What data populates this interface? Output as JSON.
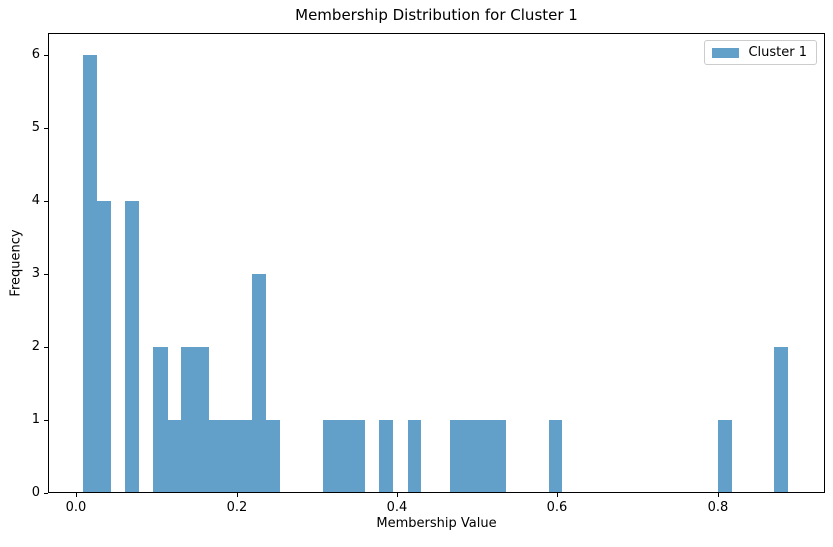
{
  "chart_data": {
    "type": "bar",
    "subtype": "histogram",
    "title": "Membership Distribution for Cluster 1",
    "xlabel": "Membership Value",
    "ylabel": "Frequency",
    "xlim": [
      -0.0353,
      0.9336
    ],
    "ylim": [
      0,
      6.3
    ],
    "xticks": [
      0.0,
      0.2,
      0.4,
      0.6,
      0.8
    ],
    "xtick_labels": [
      "0.0",
      "0.2",
      "0.4",
      "0.6",
      "0.8"
    ],
    "yticks": [
      0,
      1,
      2,
      3,
      4,
      5,
      6
    ],
    "ytick_labels": [
      "0",
      "1",
      "2",
      "3",
      "4",
      "5",
      "6"
    ],
    "grid": false,
    "bar_color": "#1f77b4",
    "bar_opacity": 0.7,
    "bars": [
      {
        "x0": 0.008,
        "x1": 0.026,
        "count": 6
      },
      {
        "x0": 0.026,
        "x1": 0.043,
        "count": 4
      },
      {
        "x0": 0.061,
        "x1": 0.078,
        "count": 4
      },
      {
        "x0": 0.096,
        "x1": 0.114,
        "count": 2
      },
      {
        "x0": 0.114,
        "x1": 0.131,
        "count": 1
      },
      {
        "x0": 0.131,
        "x1": 0.166,
        "count": 2
      },
      {
        "x0": 0.166,
        "x1": 0.219,
        "count": 1
      },
      {
        "x0": 0.219,
        "x1": 0.237,
        "count": 3
      },
      {
        "x0": 0.237,
        "x1": 0.254,
        "count": 1
      },
      {
        "x0": 0.307,
        "x1": 0.36,
        "count": 1
      },
      {
        "x0": 0.378,
        "x1": 0.395,
        "count": 1
      },
      {
        "x0": 0.413,
        "x1": 0.43,
        "count": 1
      },
      {
        "x0": 0.466,
        "x1": 0.536,
        "count": 1
      },
      {
        "x0": 0.589,
        "x1": 0.606,
        "count": 1
      },
      {
        "x0": 0.8,
        "x1": 0.818,
        "count": 1
      },
      {
        "x0": 0.87,
        "x1": 0.888,
        "count": 2
      }
    ],
    "legend": {
      "position": "upper-right",
      "entries": [
        {
          "label": "Cluster 1",
          "color": "#1f77b4"
        }
      ]
    }
  }
}
